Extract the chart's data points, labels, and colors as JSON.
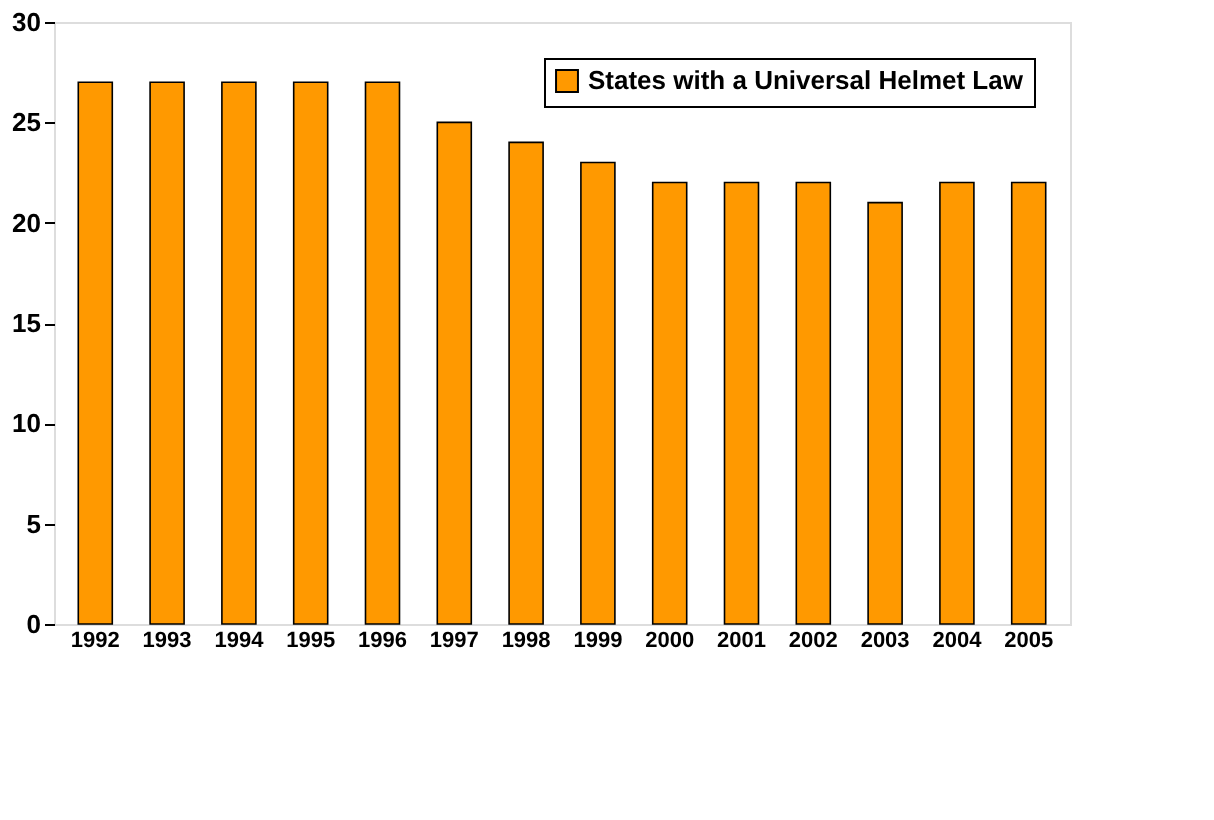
{
  "chart_data": {
    "type": "bar",
    "categories": [
      "1992",
      "1993",
      "1994",
      "1995",
      "1996",
      "1997",
      "1998",
      "1999",
      "2000",
      "2001",
      "2002",
      "2003",
      "2004",
      "2005"
    ],
    "series": [
      {
        "name": "States with a Universal Helmet Law",
        "color": "#ff9900",
        "values": [
          27,
          27,
          27,
          27,
          27,
          25,
          24,
          23,
          22,
          22,
          22,
          21,
          22,
          22
        ]
      }
    ],
    "ylim": [
      0,
      30
    ],
    "yticks": [
      0,
      5,
      10,
      15,
      20,
      25,
      30
    ],
    "grid": false,
    "legend": "top right"
  }
}
